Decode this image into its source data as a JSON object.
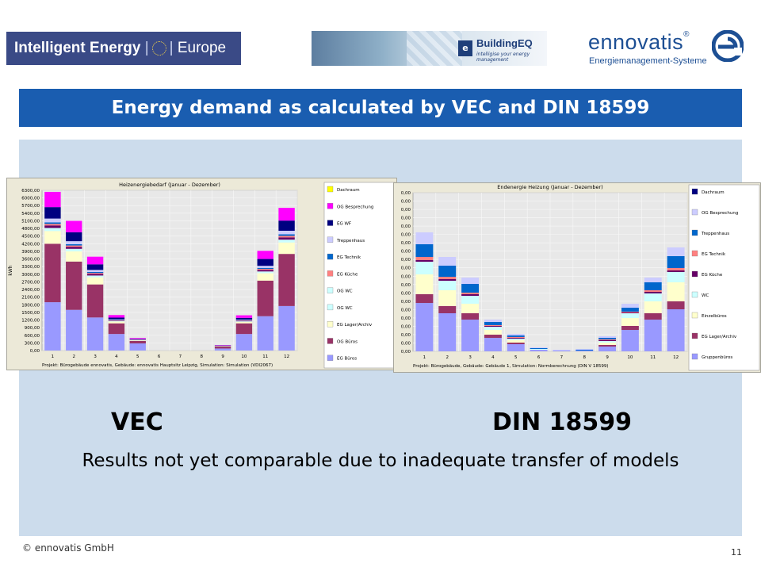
{
  "header": {
    "logo_ie": {
      "text_a": "Intelligent Energy",
      "text_b": "Europe"
    },
    "logo_bq": {
      "name": "BuildingEQ",
      "badge": "e",
      "tagline": "intelligise your energy management"
    },
    "logo_en": {
      "name": "ennovatis",
      "reg": "®",
      "subtitle": "Energiemanagement-Systeme",
      "brand_color": "#1d4f94"
    }
  },
  "title": "Energy demand as calculated by VEC and DIN 18599",
  "labels": {
    "left": "VEC",
    "right": "DIN 18599"
  },
  "note": "Results not yet comparable due to inadequate transfer of models",
  "footer": {
    "copyright": "© ennovatis GmbH",
    "page": "11"
  },
  "chart_data": [
    {
      "type": "bar",
      "stacked": true,
      "title": "Heizenergiebedarf (Januar - Dezember)",
      "ylabel": "kWh",
      "xlabel": "",
      "caption": "Projekt: Bürogebäude ennovatis, Gebäude: ennovatis Hauptsitz Leipzig, Simulation: Simulation (VDI2067)",
      "ylim": [
        0,
        6300
      ],
      "yticks": [
        "0,00",
        "300,00",
        "600,00",
        "900,00",
        "1200,00",
        "1500,00",
        "1800,00",
        "2100,00",
        "2400,00",
        "2700,00",
        "3000,00",
        "3300,00",
        "3600,00",
        "3900,00",
        "4200,00",
        "4500,00",
        "4800,00",
        "5100,00",
        "5400,00",
        "5700,00",
        "6000,00",
        "6300,00"
      ],
      "grid": true,
      "legend_position": "right",
      "categories": [
        "1",
        "2",
        "3",
        "4",
        "5",
        "6",
        "7",
        "8",
        "9",
        "10",
        "11",
        "12"
      ],
      "series": [
        {
          "name": "EG Büros",
          "color": "#9999ff",
          "values": [
            1900,
            1600,
            1300,
            650,
            280,
            0,
            0,
            0,
            80,
            650,
            1350,
            1750
          ]
        },
        {
          "name": "OG Büros",
          "color": "#993366",
          "values": [
            2300,
            1900,
            1300,
            420,
            100,
            0,
            0,
            0,
            80,
            420,
            1400,
            2050
          ]
        },
        {
          "name": "EG Lager/Archiv",
          "color": "#ffffcc",
          "values": [
            500,
            400,
            280,
            70,
            20,
            0,
            0,
            0,
            10,
            60,
            290,
            450
          ]
        },
        {
          "name": "OG WC",
          "color": "#ccffff",
          "values": [
            120,
            100,
            70,
            20,
            10,
            0,
            0,
            0,
            5,
            20,
            70,
            110
          ]
        },
        {
          "name": "OG WC",
          "color": "#660066",
          "values": [
            100,
            80,
            60,
            20,
            10,
            0,
            0,
            0,
            5,
            20,
            60,
            90
          ]
        },
        {
          "name": "EG Küche",
          "color": "#ff8080",
          "values": [
            60,
            50,
            40,
            10,
            5,
            0,
            0,
            0,
            3,
            10,
            40,
            60
          ]
        },
        {
          "name": "EG Technik",
          "color": "#0066cc",
          "values": [
            60,
            50,
            40,
            10,
            5,
            0,
            0,
            0,
            3,
            10,
            40,
            60
          ]
        },
        {
          "name": "Treppenhaus",
          "color": "#ccccff",
          "values": [
            150,
            120,
            80,
            25,
            10,
            0,
            0,
            0,
            5,
            25,
            80,
            140
          ]
        },
        {
          "name": "EG WF",
          "color": "#000080",
          "values": [
            450,
            350,
            220,
            70,
            20,
            0,
            0,
            0,
            10,
            70,
            270,
            400
          ]
        },
        {
          "name": "OG Besprechung",
          "color": "#ff00ff",
          "values": [
            600,
            450,
            300,
            100,
            30,
            0,
            0,
            0,
            14,
            100,
            320,
            500
          ]
        },
        {
          "name": "Dachraum",
          "color": "#ffff00",
          "values": [
            0,
            0,
            0,
            0,
            0,
            0,
            0,
            0,
            0,
            0,
            0,
            0
          ]
        }
      ],
      "legend_order": [
        "Dachraum",
        "OG Besprechung",
        "EG WF",
        "Treppenhaus",
        "EG Technik",
        "EG Küche",
        "OG WC",
        "OG WC",
        "EG Lager/Archiv",
        "OG Büros",
        "EG Büros"
      ]
    },
    {
      "type": "bar",
      "stacked": true,
      "title": "Endenergie Heizung (Januar - Dezember)",
      "ylabel": "",
      "xlabel": "",
      "caption": "Projekt: Bürogebäude, Gebäude: Gebäude 1, Simulation: Normberechnung (DIN V 18599)",
      "ylim": [
        0,
        200
      ],
      "yticks": [
        "0,00",
        "0,00",
        "0,00",
        "0,00",
        "0,00",
        "0,00",
        "0,00",
        "0,00",
        "0,00",
        "0,00",
        "0,00",
        "0,00",
        "0,00",
        "0,00",
        "0,00",
        "0,00",
        "0,00",
        "0,00",
        "0,00",
        "0,00"
      ],
      "grid": true,
      "legend_position": "right",
      "categories": [
        "1",
        "2",
        "3",
        "4",
        "5",
        "6",
        "7",
        "8",
        "9",
        "10",
        "11",
        "12"
      ],
      "series": [
        {
          "name": "Gruppenbüros",
          "color": "#9999ff",
          "values": [
            61,
            48,
            40,
            17,
            9,
            2,
            1,
            1,
            6,
            27,
            40,
            53
          ]
        },
        {
          "name": "EG Lager/Archiv",
          "color": "#993366",
          "values": [
            11,
            9,
            8,
            4,
            2,
            0,
            0,
            0,
            2,
            5,
            8,
            10
          ]
        },
        {
          "name": "Einzelbüros",
          "color": "#ffffcc",
          "values": [
            25,
            20,
            12,
            6,
            3,
            0,
            0,
            0,
            3,
            10,
            15,
            24
          ]
        },
        {
          "name": "WC",
          "color": "#ccffff",
          "values": [
            16,
            12,
            10,
            4,
            2,
            1,
            0,
            0,
            2,
            6,
            10,
            13
          ]
        },
        {
          "name": "EG Küche",
          "color": "#660066",
          "values": [
            2,
            2,
            2,
            1,
            1,
            0,
            0,
            0,
            1,
            1,
            2,
            2
          ]
        },
        {
          "name": "EG Technik",
          "color": "#ff8080",
          "values": [
            4,
            3,
            2,
            1,
            1,
            0,
            0,
            0,
            1,
            1,
            2,
            3
          ]
        },
        {
          "name": "Treppenhaus",
          "color": "#0066cc",
          "values": [
            16,
            14,
            11,
            4,
            2,
            1,
            0,
            1,
            2,
            5,
            10,
            15
          ]
        },
        {
          "name": "OG Besprechung",
          "color": "#ccccff",
          "values": [
            15,
            11,
            8,
            3,
            2,
            1,
            1,
            1,
            2,
            5,
            6,
            11
          ]
        },
        {
          "name": "Dachraum",
          "color": "#000080",
          "values": [
            0,
            0,
            0,
            0,
            0,
            0,
            0,
            0,
            0,
            0,
            0,
            0
          ]
        }
      ],
      "legend_order": [
        "Dachraum",
        "OG Besprechung",
        "Treppenhaus",
        "EG Technik",
        "EG Küche",
        "WC",
        "Einzelbüros",
        "EG Lager/Archiv",
        "Gruppenbüros"
      ]
    }
  ]
}
